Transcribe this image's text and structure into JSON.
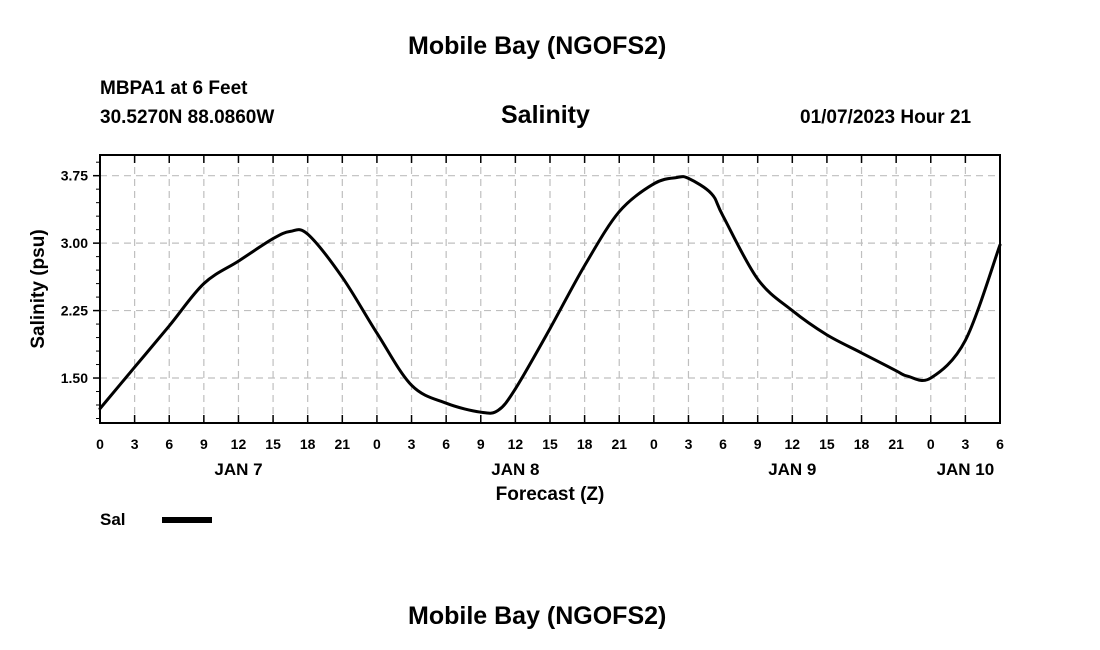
{
  "header": {
    "title_top": "Mobile Bay (NGOFS2)",
    "station": "MBPA1 at 6 Feet",
    "coords": "30.5270N  88.0860W",
    "variable": "Salinity",
    "datetime": "01/07/2023 Hour 21",
    "title_bottom": "Mobile Bay (NGOFS2)"
  },
  "legend": {
    "label": "Sal"
  },
  "chart_data": {
    "type": "line",
    "title": "Salinity",
    "xlabel": "Forecast (Z)",
    "ylabel": "Salinity (psu)",
    "xlim": [
      0,
      78
    ],
    "ylim": [
      1.0,
      3.98
    ],
    "yticks": [
      1.5,
      2.25,
      3.0,
      3.75
    ],
    "ytick_labels": [
      "1.50",
      "2.25",
      "3.00",
      "3.75"
    ],
    "xticks": [
      0,
      3,
      6,
      9,
      12,
      15,
      18,
      21,
      24,
      27,
      30,
      33,
      36,
      39,
      42,
      45,
      48,
      51,
      54,
      57,
      60,
      63,
      66,
      69,
      72,
      75,
      78
    ],
    "xtick_labels": [
      "0",
      "3",
      "6",
      "9",
      "12",
      "15",
      "18",
      "21",
      "0",
      "3",
      "6",
      "9",
      "12",
      "15",
      "18",
      "21",
      "0",
      "3",
      "6",
      "9",
      "12",
      "15",
      "18",
      "21",
      "0",
      "3",
      "6"
    ],
    "day_labels": [
      {
        "x": 12,
        "label": "JAN 7"
      },
      {
        "x": 36,
        "label": "JAN 8"
      },
      {
        "x": 60,
        "label": "JAN 9"
      },
      {
        "x": 75,
        "label": "JAN 10"
      }
    ],
    "grid": true,
    "series": [
      {
        "name": "Sal",
        "color": "#000000",
        "x": [
          0,
          3,
          6,
          9,
          12,
          15,
          16.5,
          18,
          21,
          24,
          27,
          30,
          33,
          34.5,
          36,
          39,
          42,
          45,
          48,
          50,
          51,
          53,
          54,
          57,
          60,
          63,
          66,
          69,
          70,
          72,
          75,
          78
        ],
        "values": [
          1.16,
          1.62,
          2.08,
          2.55,
          2.8,
          3.05,
          3.13,
          3.1,
          2.62,
          2.0,
          1.42,
          1.22,
          1.12,
          1.14,
          1.38,
          2.05,
          2.75,
          3.35,
          3.66,
          3.73,
          3.72,
          3.55,
          3.3,
          2.6,
          2.25,
          1.98,
          1.78,
          1.58,
          1.52,
          1.5,
          1.92,
          2.98
        ]
      }
    ]
  }
}
